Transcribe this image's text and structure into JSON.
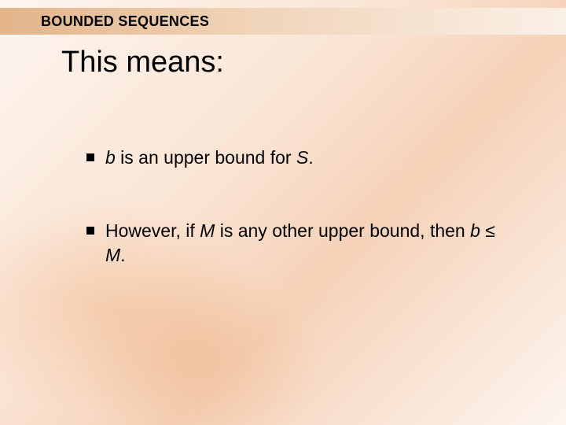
{
  "slide": {
    "header_title": "BOUNDED SEQUENCES",
    "main_title": "This means:",
    "bullets": [
      {
        "segments": [
          {
            "text": "b",
            "italic": true
          },
          {
            "text": " is an upper bound for ",
            "italic": false
          },
          {
            "text": "S",
            "italic": true
          },
          {
            "text": ".",
            "italic": false
          }
        ]
      },
      {
        "segments": [
          {
            "text": "However, if ",
            "italic": false
          },
          {
            "text": "M",
            "italic": true
          },
          {
            "text": " is any other upper bound, then ",
            "italic": false
          },
          {
            "text": "b",
            "italic": true
          },
          {
            "text": " ≤ ",
            "italic": false
          },
          {
            "text": "M",
            "italic": true
          },
          {
            "text": ".",
            "italic": false
          }
        ]
      }
    ],
    "colors": {
      "header_gradient_start": "#e3b489",
      "header_gradient_end": "#faf0e6",
      "body_bg_light": "#fdf5ef",
      "body_bg_mid": "#f5d2b8",
      "text": "#000000"
    },
    "typography": {
      "header_fontsize": 18,
      "header_weight": "bold",
      "title_fontsize": 38,
      "bullet_fontsize": 23,
      "font_family": "Arial"
    }
  }
}
